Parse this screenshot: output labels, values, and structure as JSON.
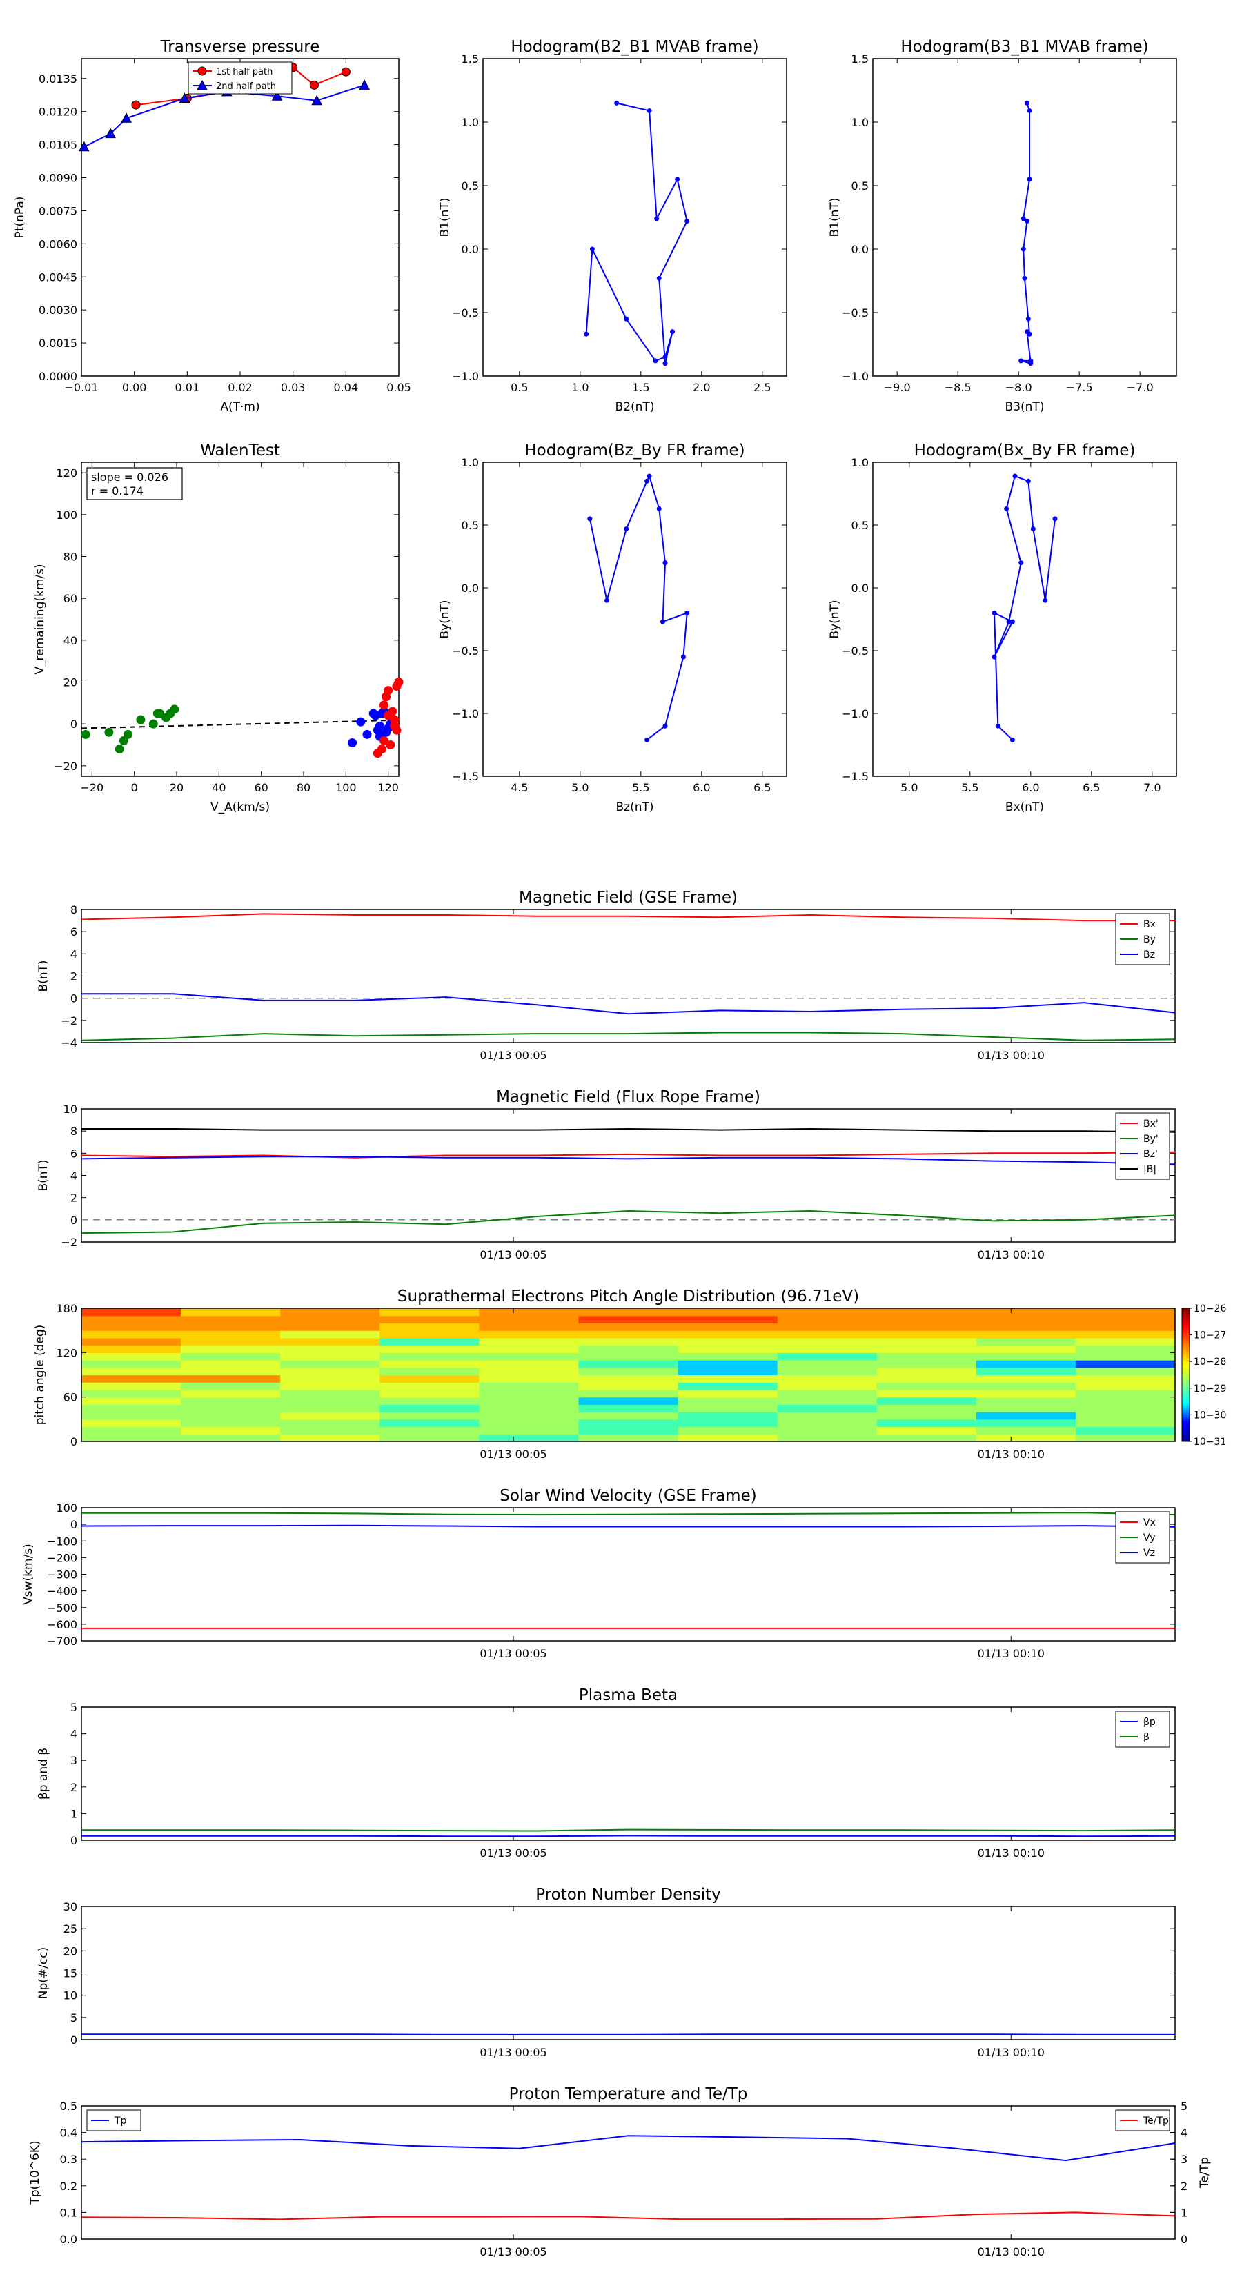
{
  "colors": {
    "red": "#ff0000",
    "green": "#008000",
    "blue": "#0000ff",
    "black": "#000000",
    "gray": "#808080"
  },
  "time_ticks": [
    "01/13 00:05",
    "01/13 00:10"
  ],
  "chart_data": [
    {
      "id": "pt",
      "type": "line",
      "title": "Transverse pressure",
      "xlabel": "A(T·m)",
      "ylabel": "Pt(nPa)",
      "xlim": [
        -0.01,
        0.05
      ],
      "ylim": [
        0,
        0.0144
      ],
      "xticks": [
        "−0.01",
        "0.00",
        "0.01",
        "0.02",
        "0.03",
        "0.04",
        "0.05"
      ],
      "xtick_values": [
        -0.01,
        0,
        0.01,
        0.02,
        0.03,
        0.04,
        0.05
      ],
      "yticks": [
        "0.0000",
        "0.0015",
        "0.0030",
        "0.0045",
        "0.0060",
        "0.0075",
        "0.0090",
        "0.0105",
        "0.0120",
        "0.0135"
      ],
      "ytick_values": [
        0,
        0.0015,
        0.003,
        0.0045,
        0.006,
        0.0075,
        0.009,
        0.0105,
        0.012,
        0.0135
      ],
      "legend": "upper center",
      "series": [
        {
          "name": "1st half path",
          "color": "#ff0000",
          "marker": "circle",
          "x": [
            0.0003,
            0.01,
            0.02,
            0.03,
            0.034,
            0.04
          ],
          "y": [
            0.0123,
            0.0126,
            0.013,
            0.014,
            0.0132,
            0.0138
          ]
        },
        {
          "name": "2nd half path",
          "color": "#0000ff",
          "marker": "triangle",
          "x": [
            -0.0095,
            -0.0045,
            -0.0015,
            0.0095,
            0.0175,
            0.027,
            0.0345,
            0.0435
          ],
          "y": [
            0.0104,
            0.011,
            0.0117,
            0.0126,
            0.0129,
            0.0127,
            0.0125,
            0.0132
          ]
        }
      ]
    },
    {
      "id": "h1",
      "type": "line",
      "title": "Hodogram(B2_B1 MVAB frame)",
      "xlabel": "B2(nT)",
      "ylabel": "B1(nT)",
      "xlim": [
        0.2,
        2.7
      ],
      "ylim": [
        -1.0,
        1.5
      ],
      "xticks": [
        "0.5",
        "1.0",
        "1.5",
        "2.0",
        "2.5"
      ],
      "xtick_values": [
        0.5,
        1.0,
        1.5,
        2.0,
        2.5
      ],
      "yticks": [
        "−1.0",
        "−0.5",
        "0.0",
        "0.5",
        "1.0",
        "1.5"
      ],
      "ytick_values": [
        -1.0,
        -0.5,
        0,
        0.5,
        1.0,
        1.5
      ],
      "series": [
        {
          "color": "#0000ff",
          "marker": "dot",
          "x": [
            1.3,
            1.57,
            1.63,
            1.8,
            1.88,
            1.65,
            1.7,
            1.76,
            1.7,
            1.62,
            1.38,
            1.1,
            1.05
          ],
          "y": [
            1.15,
            1.09,
            0.24,
            0.55,
            0.22,
            -0.23,
            -0.9,
            -0.65,
            -0.85,
            -0.88,
            -0.55,
            0.0,
            -0.67
          ]
        }
      ]
    },
    {
      "id": "h2",
      "type": "line",
      "title": "Hodogram(B3_B1 MVAB frame)",
      "xlabel": "B3(nT)",
      "ylabel": "B1(nT)",
      "xlim": [
        -9.2,
        -6.7
      ],
      "ylim": [
        -1.0,
        1.5
      ],
      "xticks": [
        "−9.0",
        "−8.5",
        "−8.0",
        "−7.5",
        "−7.0"
      ],
      "xtick_values": [
        -9.0,
        -8.5,
        -8.0,
        -7.5,
        -7.0
      ],
      "yticks": [
        "−1.0",
        "−0.5",
        "0.0",
        "0.5",
        "1.0",
        "1.5"
      ],
      "ytick_values": [
        -1.0,
        -0.5,
        0,
        0.5,
        1.0,
        1.5
      ],
      "series": [
        {
          "color": "#0000ff",
          "marker": "dot",
          "x": [
            -7.93,
            -7.91,
            -7.91,
            -7.96,
            -7.93,
            -7.96,
            -7.95,
            -7.92,
            -7.91,
            -7.93,
            -7.9,
            -7.98,
            -7.9
          ],
          "y": [
            1.15,
            1.09,
            0.55,
            0.24,
            0.22,
            0.0,
            -0.23,
            -0.55,
            -0.67,
            -0.65,
            -0.9,
            -0.88,
            -0.88
          ]
        }
      ]
    },
    {
      "id": "walen",
      "type": "scatter",
      "title": "WalenTest",
      "xlabel": "V_A(km/s)",
      "ylabel": "V_remaining(km/s)",
      "xlim": [
        -25,
        125
      ],
      "ylim": [
        -25,
        125
      ],
      "xticks": [
        "−20",
        "0",
        "20",
        "40",
        "60",
        "80",
        "100",
        "120"
      ],
      "xtick_values": [
        -20,
        0,
        20,
        40,
        60,
        80,
        100,
        120
      ],
      "yticks": [
        "−20",
        "0",
        "20",
        "40",
        "60",
        "80",
        "100",
        "120"
      ],
      "ytick_values": [
        -20,
        0,
        20,
        40,
        60,
        80,
        100,
        120
      ],
      "annotation": [
        "slope = 0.026",
        "r = 0.174"
      ],
      "fit": {
        "x": [
          -25,
          125
        ],
        "y": [
          -2.1,
          1.8
        ],
        "color": "#000000",
        "style": "dashed"
      },
      "series": [
        {
          "color": "#008000",
          "x": [
            -23,
            -12,
            -7,
            -5,
            -3,
            3,
            9,
            11,
            12,
            15,
            17,
            19
          ],
          "y": [
            -5,
            -4,
            -12,
            -8,
            -5,
            2,
            0,
            5,
            5,
            3,
            5,
            7
          ]
        },
        {
          "color": "#0000ff",
          "x": [
            103,
            107,
            110,
            113,
            114,
            115,
            116,
            117,
            118,
            120,
            121,
            119,
            116
          ],
          "y": [
            -9,
            1,
            -5,
            5,
            4,
            -3,
            -6,
            5,
            6,
            -2,
            0,
            -4,
            -1
          ]
        },
        {
          "color": "#ff0000",
          "x": [
            115,
            117,
            118,
            119,
            120,
            121,
            122,
            123,
            124,
            124,
            125,
            123,
            120,
            118
          ],
          "y": [
            -14,
            -12,
            9,
            13,
            16,
            -10,
            6,
            2,
            -3,
            18,
            20,
            -1,
            4,
            -8
          ]
        }
      ]
    },
    {
      "id": "h3",
      "type": "line",
      "title": "Hodogram(Bz_By FR frame)",
      "xlabel": "Bz(nT)",
      "ylabel": "By(nT)",
      "xlim": [
        4.2,
        6.7
      ],
      "ylim": [
        -1.5,
        1.0
      ],
      "xticks": [
        "4.5",
        "5.0",
        "5.5",
        "6.0",
        "6.5"
      ],
      "xtick_values": [
        4.5,
        5.0,
        5.5,
        6.0,
        6.5
      ],
      "yticks": [
        "−1.5",
        "−1.0",
        "−0.5",
        "0.0",
        "0.5",
        "1.0"
      ],
      "ytick_values": [
        -1.5,
        -1.0,
        -0.5,
        0,
        0.5,
        1.0
      ],
      "series": [
        {
          "color": "#0000ff",
          "marker": "dot",
          "x": [
            5.08,
            5.22,
            5.38,
            5.55,
            5.57,
            5.65,
            5.7,
            5.68,
            5.88,
            5.85,
            5.7,
            5.55
          ],
          "y": [
            0.55,
            -0.1,
            0.47,
            0.85,
            0.89,
            0.63,
            0.2,
            -0.27,
            -0.2,
            -0.55,
            -1.1,
            -1.21
          ]
        }
      ]
    },
    {
      "id": "h4",
      "type": "line",
      "title": "Hodogram(Bx_By FR frame)",
      "xlabel": "Bx(nT)",
      "ylabel": "By(nT)",
      "xlim": [
        4.7,
        7.2
      ],
      "ylim": [
        -1.5,
        1.0
      ],
      "xticks": [
        "5.0",
        "5.5",
        "6.0",
        "6.5",
        "7.0"
      ],
      "xtick_values": [
        5.0,
        5.5,
        6.0,
        6.5,
        7.0
      ],
      "yticks": [
        "−1.5",
        "−1.0",
        "−0.5",
        "0.0",
        "0.5",
        "1.0"
      ],
      "ytick_values": [
        -1.5,
        -1.0,
        -0.5,
        0,
        0.5,
        1.0
      ],
      "series": [
        {
          "color": "#0000ff",
          "marker": "dot",
          "x": [
            6.2,
            6.12,
            6.02,
            5.98,
            5.87,
            5.8,
            5.92,
            5.82,
            5.7,
            5.85,
            5.7,
            5.73,
            5.85
          ],
          "y": [
            0.55,
            -0.1,
            0.47,
            0.85,
            0.89,
            0.63,
            0.2,
            -0.27,
            -0.55,
            -0.27,
            -0.2,
            -1.1,
            -1.21
          ]
        }
      ]
    },
    {
      "id": "bgse",
      "type": "line",
      "title": "Magnetic Field (GSE Frame)",
      "ylabel": "B(nT)",
      "ylim": [
        -4,
        8
      ],
      "yticks": [
        "−4",
        "−2",
        "0",
        "2",
        "4",
        "6",
        "8"
      ],
      "ytick_values": [
        -4,
        -2,
        0,
        2,
        4,
        6,
        8
      ],
      "zero_line": true,
      "legend": "upper right",
      "series": [
        {
          "name": "Bx",
          "color": "#ff0000",
          "y": [
            7.1,
            7.3,
            7.6,
            7.5,
            7.5,
            7.4,
            7.4,
            7.3,
            7.5,
            7.3,
            7.2,
            7.0,
            7.0
          ]
        },
        {
          "name": "By",
          "color": "#008000",
          "y": [
            -3.8,
            -3.6,
            -3.2,
            -3.4,
            -3.3,
            -3.2,
            -3.2,
            -3.1,
            -3.1,
            -3.2,
            -3.5,
            -3.8,
            -3.7
          ]
        },
        {
          "name": "Bz",
          "color": "#0000ff",
          "y": [
            0.4,
            0.4,
            -0.2,
            -0.2,
            0.1,
            -0.6,
            -1.4,
            -1.1,
            -1.2,
            -1.0,
            -0.9,
            -0.4,
            -1.3
          ]
        }
      ]
    },
    {
      "id": "bfr",
      "type": "line",
      "title": "Magnetic Field (Flux Rope Frame)",
      "ylabel": "B(nT)",
      "ylim": [
        -2,
        10
      ],
      "yticks": [
        "−2",
        "0",
        "2",
        "4",
        "6",
        "8",
        "10"
      ],
      "ytick_values": [
        -2,
        0,
        2,
        4,
        6,
        8,
        10
      ],
      "zero_line": true,
      "legend": "upper right",
      "series": [
        {
          "name": "Bx'",
          "color": "#ff0000",
          "y": [
            5.8,
            5.7,
            5.8,
            5.6,
            5.8,
            5.8,
            5.9,
            5.8,
            5.8,
            5.9,
            6.0,
            6.0,
            6.1
          ]
        },
        {
          "name": "By'",
          "color": "#008000",
          "y": [
            -1.2,
            -1.1,
            -0.3,
            -0.2,
            -0.4,
            0.3,
            0.8,
            0.6,
            0.8,
            0.4,
            -0.1,
            0.0,
            0.4
          ]
        },
        {
          "name": "Bz'",
          "color": "#0000ff",
          "y": [
            5.5,
            5.6,
            5.7,
            5.7,
            5.6,
            5.6,
            5.5,
            5.6,
            5.6,
            5.5,
            5.3,
            5.2,
            5.0
          ]
        },
        {
          "name": "|B|",
          "color": "#000000",
          "y": [
            8.2,
            8.2,
            8.1,
            8.1,
            8.1,
            8.1,
            8.2,
            8.1,
            8.2,
            8.1,
            8.0,
            8.0,
            7.9
          ]
        }
      ]
    },
    {
      "id": "pad",
      "type": "heatmap",
      "title": "Suprathermal Electrons Pitch Angle Distribution (96.71eV)",
      "ylabel": "pitch angle (deg)",
      "ylim": [
        0,
        180
      ],
      "yticks": [
        "0",
        "60",
        "120",
        "180"
      ],
      "ytick_values": [
        0,
        60,
        120,
        180
      ],
      "colorbar_ticks": [
        "10−26",
        "10−27",
        "10−28",
        "10−29",
        "10−30",
        "10−31"
      ]
    },
    {
      "id": "vsw",
      "type": "line",
      "title": "Solar Wind Velocity (GSE Frame)",
      "ylabel": "Vsw(km/s)",
      "ylim": [
        -700,
        100
      ],
      "yticks": [
        "−700",
        "−600",
        "−500",
        "−400",
        "−300",
        "−200",
        "−100",
        "0",
        "100"
      ],
      "ytick_values": [
        -700,
        -600,
        -500,
        -400,
        -300,
        -200,
        -100,
        0,
        100
      ],
      "legend": "upper right",
      "series": [
        {
          "name": "Vx",
          "color": "#ff0000",
          "y": [
            -625,
            -625,
            -625,
            -625,
            -625,
            -625,
            -625,
            -625,
            -625,
            -625,
            -625,
            -625,
            -625
          ]
        },
        {
          "name": "Vy",
          "color": "#008000",
          "y": [
            68,
            68,
            68,
            65,
            60,
            58,
            60,
            62,
            64,
            66,
            68,
            70,
            58
          ]
        },
        {
          "name": "Vz",
          "color": "#0000ff",
          "y": [
            -10,
            -8,
            -8,
            -7,
            -10,
            -14,
            -14,
            -14,
            -14,
            -14,
            -12,
            -8,
            -15
          ]
        }
      ]
    },
    {
      "id": "beta",
      "type": "line",
      "title": "Plasma Beta",
      "ylabel": "βp and β",
      "ylim": [
        0,
        5
      ],
      "yticks": [
        "0",
        "1",
        "2",
        "3",
        "4",
        "5"
      ],
      "ytick_values": [
        0,
        1,
        2,
        3,
        4,
        5
      ],
      "legend": "upper right",
      "series": [
        {
          "name": "βp",
          "color": "#0000ff",
          "y": [
            0.16,
            0.16,
            0.16,
            0.16,
            0.15,
            0.15,
            0.17,
            0.16,
            0.16,
            0.16,
            0.16,
            0.15,
            0.16
          ]
        },
        {
          "name": "β",
          "color": "#008000",
          "y": [
            0.38,
            0.38,
            0.38,
            0.37,
            0.36,
            0.35,
            0.4,
            0.39,
            0.38,
            0.38,
            0.37,
            0.36,
            0.38
          ]
        }
      ]
    },
    {
      "id": "np",
      "type": "line",
      "title": "Proton Number Density",
      "ylabel": "Np(#/cc)",
      "ylim": [
        0,
        30
      ],
      "yticks": [
        "0",
        "5",
        "10",
        "15",
        "20",
        "25",
        "30"
      ],
      "ytick_values": [
        0,
        5,
        10,
        15,
        20,
        25,
        30
      ],
      "series": [
        {
          "color": "#0000ff",
          "y": [
            1.2,
            1.2,
            1.2,
            1.2,
            1.1,
            1.1,
            1.1,
            1.2,
            1.2,
            1.2,
            1.2,
            1.1,
            1.1
          ]
        }
      ]
    },
    {
      "id": "tp",
      "type": "line",
      "title": "Proton Temperature and Te/Tp",
      "ylabel": "Tp(10^6K)",
      "ylabel_right": "Te/Tp",
      "ylim": [
        0,
        0.5
      ],
      "yticks": [
        "0.0",
        "0.1",
        "0.2",
        "0.3",
        "0.4",
        "0.5"
      ],
      "ytick_values": [
        0,
        0.1,
        0.2,
        0.3,
        0.4,
        0.5
      ],
      "ylim_right": [
        0,
        5
      ],
      "yticks_right": [
        "0",
        "1",
        "2",
        "3",
        "4",
        "5"
      ],
      "ytick_values_right": [
        0,
        1,
        2,
        3,
        4,
        5
      ],
      "series": [
        {
          "name": "Tp",
          "color": "#0000ff",
          "axis": "left",
          "y": [
            0.365,
            0.37,
            0.373,
            0.35,
            0.34,
            0.388,
            0.383,
            0.377,
            0.34,
            0.295,
            0.36
          ]
        },
        {
          "name": "Te/Tp",
          "color": "#ff0000",
          "axis": "right",
          "y": [
            0.82,
            0.8,
            0.74,
            0.84,
            0.84,
            0.85,
            0.75,
            0.75,
            0.76,
            0.93,
            1.0,
            0.87
          ]
        }
      ]
    }
  ]
}
